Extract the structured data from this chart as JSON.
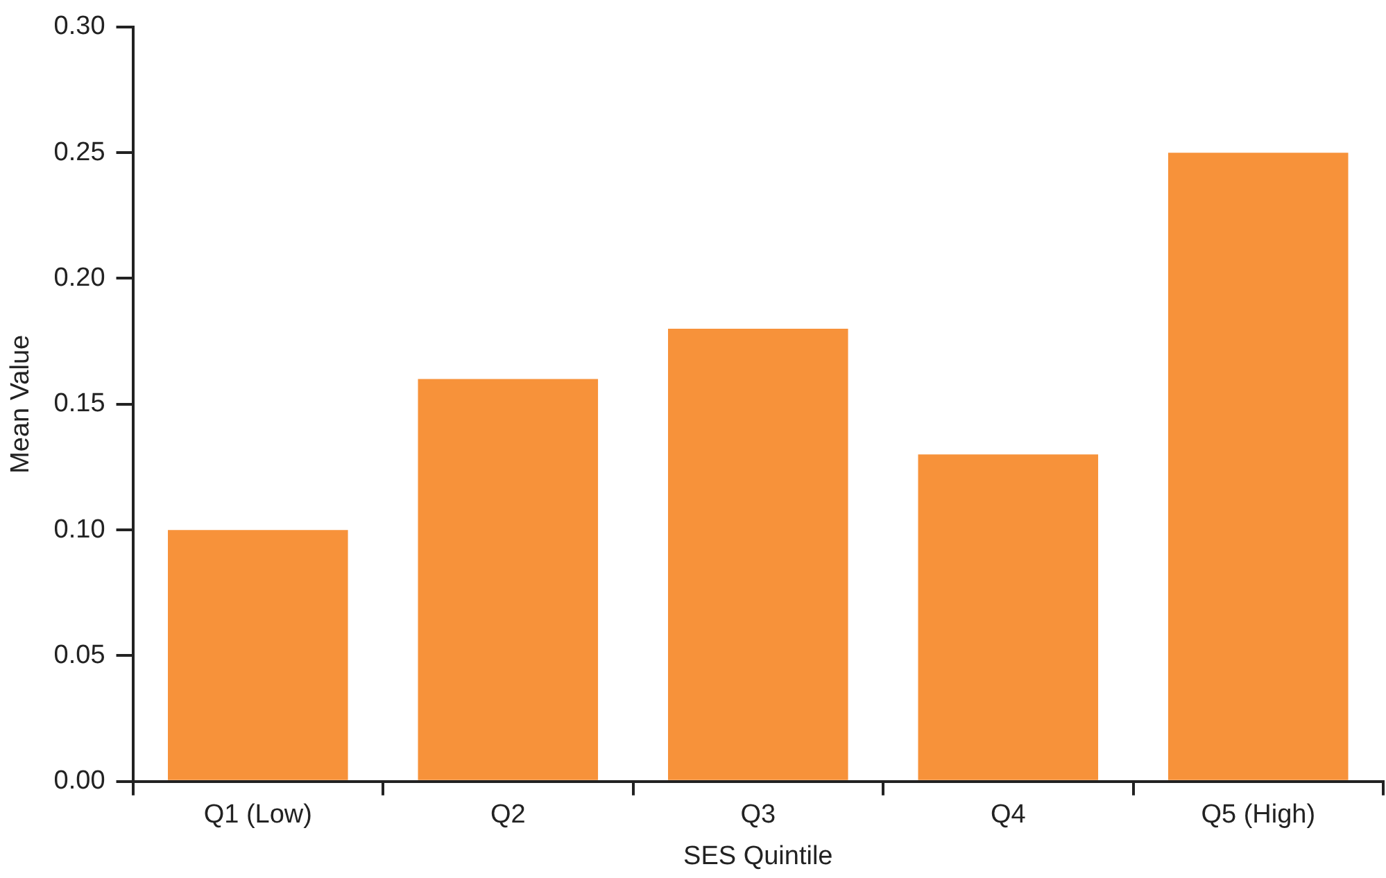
{
  "chart_data": {
    "type": "bar",
    "xlabel": "SES Quintile",
    "ylabel": "Mean Value",
    "categories": [
      "Q1 (Low)",
      "Q2",
      "Q3",
      "Q4",
      "Q5 (High)"
    ],
    "values": [
      0.1,
      0.16,
      0.18,
      0.13,
      0.25
    ],
    "color": "#f7923a",
    "ylim": [
      0,
      0.3
    ],
    "yticks": [
      {
        "value": 0,
        "label": "0.00"
      },
      {
        "value": 0.05,
        "label": "0.05"
      },
      {
        "value": 0.1,
        "label": "0.10"
      },
      {
        "value": 0.15,
        "label": "0.15"
      },
      {
        "value": 0.2,
        "label": "0.20"
      },
      {
        "value": 0.25,
        "label": "0.25"
      },
      {
        "value": 0.3,
        "label": "0.30"
      }
    ],
    "grid": false,
    "legend": false
  }
}
